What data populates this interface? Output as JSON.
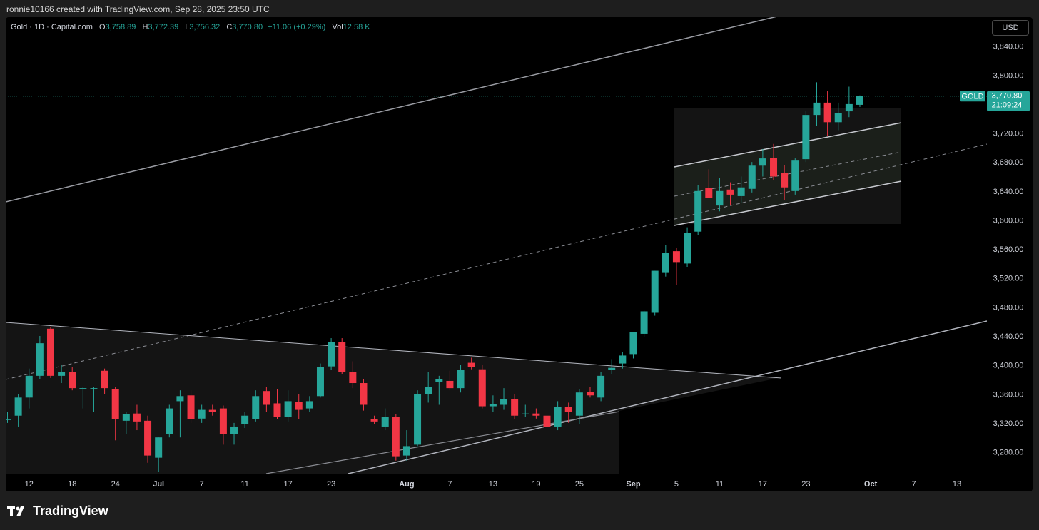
{
  "header": {
    "credit": "ronnie10166 created with TradingView.com, Sep 28, 2025 23:50 UTC"
  },
  "legend": {
    "symbol": "Gold · 1D · Capital.com",
    "o_label": "O",
    "o": "3,758.89",
    "h_label": "H",
    "h": "3,772.39",
    "l_label": "L",
    "l": "3,756.32",
    "c_label": "C",
    "c": "3,770.80",
    "change": "+11.06 (+0.29%)",
    "vol_label": "Vol",
    "vol": "12.58 K"
  },
  "currency_button": "USD",
  "price_tag": {
    "symbol": "GOLD",
    "price": "3,770.80",
    "countdown": "21:09:24"
  },
  "footer": {
    "brand": "TradingView"
  },
  "colors": {
    "up": "#26a69a",
    "down": "#f23645",
    "background": "#000000",
    "axis_text": "#d1d4dc",
    "trendline": "#b2b5be"
  },
  "chart_data": {
    "type": "candlestick",
    "ylim": [
      3250,
      3880
    ],
    "y_ticks": [
      {
        "value": 3840,
        "label": "3,840.00"
      },
      {
        "value": 3800,
        "label": "3,800.00"
      },
      {
        "value": 3720,
        "label": "3,720.00"
      },
      {
        "value": 3680,
        "label": "3,680.00"
      },
      {
        "value": 3640,
        "label": "3,640.00"
      },
      {
        "value": 3600,
        "label": "3,600.00"
      },
      {
        "value": 3560,
        "label": "3,560.00"
      },
      {
        "value": 3520,
        "label": "3,520.00"
      },
      {
        "value": 3480,
        "label": "3,480.00"
      },
      {
        "value": 3440,
        "label": "3,440.00"
      },
      {
        "value": 3400,
        "label": "3,400.00"
      },
      {
        "value": 3360,
        "label": "3,360.00"
      },
      {
        "value": 3320,
        "label": "3,320.00"
      },
      {
        "value": 3280,
        "label": "3,280.00"
      }
    ],
    "x_ticks": [
      {
        "index": 2,
        "label": "12"
      },
      {
        "index": 6,
        "label": "18"
      },
      {
        "index": 10,
        "label": "24"
      },
      {
        "index": 14,
        "label": "Jul"
      },
      {
        "index": 18,
        "label": "7"
      },
      {
        "index": 22,
        "label": "11"
      },
      {
        "index": 26,
        "label": "17"
      },
      {
        "index": 30,
        "label": "23"
      },
      {
        "index": 37,
        "label": "Aug"
      },
      {
        "index": 41,
        "label": "7"
      },
      {
        "index": 45,
        "label": "13"
      },
      {
        "index": 49,
        "label": "19"
      },
      {
        "index": 53,
        "label": "25"
      },
      {
        "index": 58,
        "label": "Sep"
      },
      {
        "index": 62,
        "label": "5"
      },
      {
        "index": 66,
        "label": "11"
      },
      {
        "index": 70,
        "label": "17"
      },
      {
        "index": 74,
        "label": "23"
      },
      {
        "index": 80,
        "label": "Oct"
      },
      {
        "index": 84,
        "label": "7"
      },
      {
        "index": 88,
        "label": "13"
      }
    ],
    "candles": [
      {
        "o": 3325,
        "h": 3335,
        "l": 3320,
        "c": 3325
      },
      {
        "o": 3330,
        "h": 3360,
        "l": 3315,
        "c": 3355
      },
      {
        "o": 3355,
        "h": 3395,
        "l": 3340,
        "c": 3385
      },
      {
        "o": 3385,
        "h": 3440,
        "l": 3380,
        "c": 3430
      },
      {
        "o": 3450,
        "h": 3452,
        "l": 3382,
        "c": 3385
      },
      {
        "o": 3385,
        "h": 3400,
        "l": 3375,
        "c": 3390
      },
      {
        "o": 3390,
        "h": 3397,
        "l": 3365,
        "c": 3368
      },
      {
        "o": 3368,
        "h": 3370,
        "l": 3340,
        "c": 3368
      },
      {
        "o": 3368,
        "h": 3370,
        "l": 3335,
        "c": 3368
      },
      {
        "o": 3392,
        "h": 3395,
        "l": 3360,
        "c": 3368
      },
      {
        "o": 3367,
        "h": 3370,
        "l": 3296,
        "c": 3325
      },
      {
        "o": 3323,
        "h": 3335,
        "l": 3305,
        "c": 3332
      },
      {
        "o": 3333,
        "h": 3345,
        "l": 3310,
        "c": 3322
      },
      {
        "o": 3323,
        "h": 3330,
        "l": 3265,
        "c": 3275
      },
      {
        "o": 3272,
        "h": 3300,
        "l": 3252,
        "c": 3300
      },
      {
        "o": 3305,
        "h": 3345,
        "l": 3300,
        "c": 3340
      },
      {
        "o": 3350,
        "h": 3365,
        "l": 3300,
        "c": 3357
      },
      {
        "o": 3358,
        "h": 3365,
        "l": 3320,
        "c": 3325
      },
      {
        "o": 3326,
        "h": 3345,
        "l": 3320,
        "c": 3338
      },
      {
        "o": 3338,
        "h": 3345,
        "l": 3330,
        "c": 3335
      },
      {
        "o": 3340,
        "h": 3344,
        "l": 3290,
        "c": 3305
      },
      {
        "o": 3305,
        "h": 3320,
        "l": 3290,
        "c": 3315
      },
      {
        "o": 3318,
        "h": 3335,
        "l": 3313,
        "c": 3330
      },
      {
        "o": 3325,
        "h": 3365,
        "l": 3322,
        "c": 3357
      },
      {
        "o": 3364,
        "h": 3370,
        "l": 3335,
        "c": 3345
      },
      {
        "o": 3347,
        "h": 3367,
        "l": 3325,
        "c": 3328
      },
      {
        "o": 3328,
        "h": 3365,
        "l": 3322,
        "c": 3350
      },
      {
        "o": 3349,
        "h": 3360,
        "l": 3325,
        "c": 3338
      },
      {
        "o": 3340,
        "h": 3357,
        "l": 3335,
        "c": 3350
      },
      {
        "o": 3357,
        "h": 3402,
        "l": 3355,
        "c": 3397
      },
      {
        "o": 3398,
        "h": 3437,
        "l": 3393,
        "c": 3432
      },
      {
        "o": 3432,
        "h": 3437,
        "l": 3387,
        "c": 3390
      },
      {
        "o": 3390,
        "h": 3405,
        "l": 3368,
        "c": 3375
      },
      {
        "o": 3375,
        "h": 3380,
        "l": 3337,
        "c": 3345
      },
      {
        "o": 3325,
        "h": 3330,
        "l": 3318,
        "c": 3322
      },
      {
        "o": 3315,
        "h": 3340,
        "l": 3310,
        "c": 3328
      },
      {
        "o": 3328,
        "h": 3332,
        "l": 3268,
        "c": 3274
      },
      {
        "o": 3275,
        "h": 3310,
        "l": 3268,
        "c": 3288
      },
      {
        "o": 3290,
        "h": 3365,
        "l": 3288,
        "c": 3360
      },
      {
        "o": 3360,
        "h": 3390,
        "l": 3348,
        "c": 3370
      },
      {
        "o": 3376,
        "h": 3385,
        "l": 3345,
        "c": 3380
      },
      {
        "o": 3378,
        "h": 3392,
        "l": 3365,
        "c": 3368
      },
      {
        "o": 3368,
        "h": 3400,
        "l": 3362,
        "c": 3393
      },
      {
        "o": 3403,
        "h": 3410,
        "l": 3394,
        "c": 3397
      },
      {
        "o": 3394,
        "h": 3400,
        "l": 3340,
        "c": 3343
      },
      {
        "o": 3343,
        "h": 3358,
        "l": 3335,
        "c": 3346
      },
      {
        "o": 3345,
        "h": 3368,
        "l": 3338,
        "c": 3353
      },
      {
        "o": 3353,
        "h": 3360,
        "l": 3325,
        "c": 3330
      },
      {
        "o": 3333,
        "h": 3345,
        "l": 3328,
        "c": 3333
      },
      {
        "o": 3333,
        "h": 3340,
        "l": 3326,
        "c": 3330
      },
      {
        "o": 3330,
        "h": 3345,
        "l": 3310,
        "c": 3315
      },
      {
        "o": 3315,
        "h": 3350,
        "l": 3310,
        "c": 3342
      },
      {
        "o": 3342,
        "h": 3348,
        "l": 3320,
        "c": 3335
      },
      {
        "o": 3330,
        "h": 3367,
        "l": 3318,
        "c": 3362
      },
      {
        "o": 3363,
        "h": 3370,
        "l": 3355,
        "c": 3358
      },
      {
        "o": 3355,
        "h": 3390,
        "l": 3350,
        "c": 3385
      },
      {
        "o": 3393,
        "h": 3408,
        "l": 3387,
        "c": 3396
      },
      {
        "o": 3402,
        "h": 3418,
        "l": 3395,
        "c": 3413
      },
      {
        "o": 3415,
        "h": 3445,
        "l": 3409,
        "c": 3445
      },
      {
        "o": 3443,
        "h": 3475,
        "l": 3438,
        "c": 3474
      },
      {
        "o": 3472,
        "h": 3530,
        "l": 3468,
        "c": 3530
      },
      {
        "o": 3527,
        "h": 3565,
        "l": 3522,
        "c": 3555
      },
      {
        "o": 3557,
        "h": 3562,
        "l": 3510,
        "c": 3542
      },
      {
        "o": 3540,
        "h": 3590,
        "l": 3535,
        "c": 3582
      },
      {
        "o": 3584,
        "h": 3648,
        "l": 3579,
        "c": 3640
      },
      {
        "o": 3644,
        "h": 3670,
        "l": 3630,
        "c": 3630
      },
      {
        "o": 3620,
        "h": 3658,
        "l": 3612,
        "c": 3640
      },
      {
        "o": 3642,
        "h": 3652,
        "l": 3620,
        "c": 3635
      },
      {
        "o": 3633,
        "h": 3660,
        "l": 3623,
        "c": 3645
      },
      {
        "o": 3643,
        "h": 3680,
        "l": 3638,
        "c": 3675
      },
      {
        "o": 3675,
        "h": 3698,
        "l": 3660,
        "c": 3685
      },
      {
        "o": 3686,
        "h": 3705,
        "l": 3655,
        "c": 3660
      },
      {
        "o": 3665,
        "h": 3676,
        "l": 3628,
        "c": 3645
      },
      {
        "o": 3640,
        "h": 3685,
        "l": 3635,
        "c": 3682
      },
      {
        "o": 3684,
        "h": 3750,
        "l": 3680,
        "c": 3745
      },
      {
        "o": 3745,
        "h": 3790,
        "l": 3730,
        "c": 3762
      },
      {
        "o": 3762,
        "h": 3778,
        "l": 3716,
        "c": 3735
      },
      {
        "o": 3735,
        "h": 3762,
        "l": 3724,
        "c": 3748
      },
      {
        "o": 3750,
        "h": 3784,
        "l": 3742,
        "c": 3760
      },
      {
        "o": 3759,
        "h": 3772,
        "l": 3756,
        "c": 3771
      }
    ]
  }
}
